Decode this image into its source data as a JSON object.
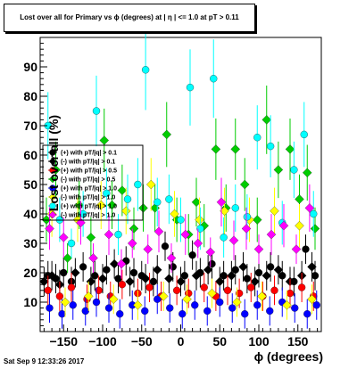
{
  "page": {
    "title": "Lost over all for Primary vs ϕ (degrees) at | η | <= 1.0 at pT > 0.11",
    "timestamp": "Sat Sep  9 12:33:26 2017"
  },
  "chart_data": {
    "type": "scatter",
    "title": "Lost over all for Primary vs ϕ (degrees) at | η | <= 1.0 at pT > 0.11",
    "xlabel": "ϕ (degrees)",
    "ylabel": "Lost over all (%)",
    "xlim": [
      -180,
      180
    ],
    "ylim": [
      0,
      100
    ],
    "x_ticks": [
      -150,
      -100,
      -50,
      0,
      50,
      100,
      150
    ],
    "y_ticks": [
      10,
      20,
      30,
      40,
      50,
      60,
      70,
      80,
      90
    ],
    "grid": false,
    "legend_placement": "center-left",
    "series": [
      {
        "name": "(+) with pT/|q| > 0.1",
        "color": "#000000",
        "marker": "circle",
        "points": [
          [
            -170,
            19
          ],
          [
            -160,
            18
          ],
          [
            -150,
            20
          ],
          [
            -140,
            17
          ],
          [
            -125,
            22
          ],
          [
            -110,
            19
          ],
          [
            -95,
            21
          ],
          [
            -80,
            18
          ],
          [
            -70,
            24
          ],
          [
            -60,
            20
          ],
          [
            -50,
            19
          ],
          [
            -35,
            17
          ],
          [
            -20,
            29
          ],
          [
            -10,
            22
          ],
          [
            5,
            19
          ],
          [
            15,
            26
          ],
          [
            25,
            20
          ],
          [
            40,
            23
          ],
          [
            55,
            19
          ],
          [
            70,
            21
          ],
          [
            85,
            18
          ],
          [
            100,
            20
          ],
          [
            115,
            22
          ],
          [
            130,
            19
          ],
          [
            145,
            17
          ],
          [
            160,
            28
          ],
          [
            172,
            19
          ]
        ]
      },
      {
        "name": "(-) with pT/|q| > 0.1",
        "color": "#000000",
        "marker": "diamond",
        "points": [
          [
            -175,
            17
          ],
          [
            -165,
            19
          ],
          [
            -155,
            16
          ],
          [
            -135,
            20
          ],
          [
            -115,
            17
          ],
          [
            -100,
            18
          ],
          [
            -85,
            23
          ],
          [
            -65,
            17
          ],
          [
            -45,
            18
          ],
          [
            -30,
            21
          ],
          [
            -15,
            18
          ],
          [
            0,
            17
          ],
          [
            20,
            19
          ],
          [
            35,
            21
          ],
          [
            50,
            17
          ],
          [
            65,
            19
          ],
          [
            80,
            22
          ],
          [
            95,
            17
          ],
          [
            110,
            19
          ],
          [
            125,
            21
          ],
          [
            140,
            17
          ],
          [
            155,
            19
          ],
          [
            168,
            22
          ]
        ]
      },
      {
        "name": "(+) with pT/|q| > 0.5",
        "color": "#ff0000",
        "marker": "circle",
        "points": [
          [
            -170,
            14
          ],
          [
            -155,
            12
          ],
          [
            -140,
            15
          ],
          [
            -120,
            11
          ],
          [
            -105,
            14
          ],
          [
            -90,
            12
          ],
          [
            -75,
            16
          ],
          [
            -55,
            13
          ],
          [
            -40,
            15
          ],
          [
            -25,
            12
          ],
          [
            -5,
            14
          ],
          [
            10,
            13
          ],
          [
            30,
            15
          ],
          [
            45,
            12
          ],
          [
            60,
            14
          ],
          [
            75,
            13
          ],
          [
            90,
            15
          ],
          [
            105,
            12
          ],
          [
            120,
            14
          ],
          [
            140,
            13
          ],
          [
            155,
            15
          ],
          [
            170,
            12
          ]
        ]
      },
      {
        "name": "(-) with pT/|q| > 0.5",
        "color": "#00cc00",
        "marker": "diamond",
        "points": [
          [
            -172,
            38
          ],
          [
            -160,
            55
          ],
          [
            -145,
            25
          ],
          [
            -130,
            43
          ],
          [
            -115,
            32
          ],
          [
            -98,
            65
          ],
          [
            -88,
            43
          ],
          [
            -75,
            48
          ],
          [
            -60,
            35
          ],
          [
            -48,
            42
          ],
          [
            -33,
            42
          ],
          [
            -18,
            67
          ],
          [
            -5,
            38
          ],
          [
            10,
            33
          ],
          [
            20,
            44
          ],
          [
            30,
            36
          ],
          [
            45,
            62
          ],
          [
            58,
            42
          ],
          [
            70,
            62
          ],
          [
            82,
            50
          ],
          [
            98,
            38
          ],
          [
            110,
            72
          ],
          [
            125,
            55
          ],
          [
            140,
            62
          ],
          [
            152,
            45
          ],
          [
            162,
            54
          ],
          [
            172,
            35
          ]
        ]
      },
      {
        "name": "(+) with pT/|q| > 1.0",
        "color": "#0000ff",
        "marker": "circle",
        "points": [
          [
            -168,
            8
          ],
          [
            -152,
            6
          ],
          [
            -138,
            9
          ],
          [
            -122,
            7
          ],
          [
            -108,
            10
          ],
          [
            -92,
            8
          ],
          [
            -78,
            6
          ],
          [
            -62,
            9
          ],
          [
            -46,
            7
          ],
          [
            -30,
            11
          ],
          [
            -14,
            8
          ],
          [
            2,
            6
          ],
          [
            18,
            9
          ],
          [
            34,
            7
          ],
          [
            50,
            10
          ],
          [
            66,
            8
          ],
          [
            82,
            6
          ],
          [
            98,
            9
          ],
          [
            114,
            7
          ],
          [
            130,
            10
          ],
          [
            146,
            8
          ],
          [
            162,
            6
          ],
          [
            174,
            9
          ]
        ]
      },
      {
        "name": "(-) with pT/|q| > 1.0",
        "color": "#ffff00",
        "marker": "diamond",
        "points": [
          [
            -165,
            40
          ],
          [
            -148,
            10
          ],
          [
            -132,
            38
          ],
          [
            -118,
            12
          ],
          [
            -102,
            43
          ],
          [
            -86,
            11
          ],
          [
            -70,
            41
          ],
          [
            -55,
            9
          ],
          [
            -38,
            50
          ],
          [
            -22,
            12
          ],
          [
            -8,
            40
          ],
          [
            8,
            11
          ],
          [
            24,
            38
          ],
          [
            40,
            13
          ],
          [
            56,
            41
          ],
          [
            72,
            10
          ],
          [
            88,
            38
          ],
          [
            104,
            12
          ],
          [
            120,
            41
          ],
          [
            136,
            9
          ],
          [
            152,
            36
          ],
          [
            168,
            11
          ]
        ]
      },
      {
        "name": "(+) with pT/|q| > 1.0",
        "color": "#00ffff",
        "marker": "circle",
        "points": [
          [
            -170,
            70
          ],
          [
            -155,
            38
          ],
          [
            -140,
            30
          ],
          [
            -125,
            40
          ],
          [
            -108,
            75
          ],
          [
            -95,
            47
          ],
          [
            -80,
            33
          ],
          [
            -68,
            45
          ],
          [
            -55,
            50
          ],
          [
            -45,
            89
          ],
          [
            -30,
            44
          ],
          [
            -15,
            45
          ],
          [
            0,
            38
          ],
          [
            12,
            83
          ],
          [
            25,
            35
          ],
          [
            42,
            86
          ],
          [
            55,
            32
          ],
          [
            70,
            42
          ],
          [
            85,
            39
          ],
          [
            98,
            66
          ],
          [
            115,
            63
          ],
          [
            130,
            37
          ],
          [
            145,
            55
          ],
          [
            158,
            67
          ],
          [
            170,
            40
          ]
        ]
      },
      {
        "name": "(-) with pT/|q| > 1.0",
        "color": "#ff00ff",
        "marker": "diamond",
        "points": [
          [
            -168,
            35
          ],
          [
            -150,
            32
          ],
          [
            -128,
            37
          ],
          [
            -112,
            25
          ],
          [
            -92,
            33
          ],
          [
            -76,
            23
          ],
          [
            -62,
            30
          ],
          [
            -42,
            28
          ],
          [
            -28,
            34
          ],
          [
            -12,
            25
          ],
          [
            6,
            33
          ],
          [
            22,
            30
          ],
          [
            38,
            27
          ],
          [
            52,
            44
          ],
          [
            68,
            31
          ],
          [
            84,
            35
          ],
          [
            100,
            28
          ],
          [
            116,
            33
          ],
          [
            132,
            36
          ],
          [
            148,
            28
          ],
          [
            165,
            42
          ]
        ]
      }
    ]
  }
}
